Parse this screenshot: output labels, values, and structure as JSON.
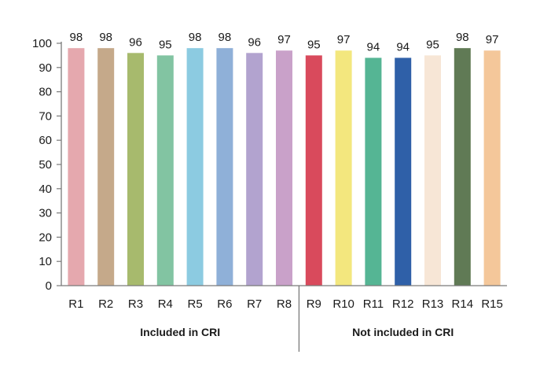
{
  "chart_data": {
    "type": "bar",
    "categories": [
      "R1",
      "R2",
      "R3",
      "R4",
      "R5",
      "R6",
      "R7",
      "R8",
      "R9",
      "R10",
      "R11",
      "R12",
      "R13",
      "R14",
      "R15"
    ],
    "values": [
      98,
      98,
      96,
      95,
      98,
      98,
      96,
      97,
      95,
      97,
      94,
      94,
      95,
      98,
      97
    ],
    "colors": [
      "#e5a8ae",
      "#c5a98a",
      "#a7ba6d",
      "#82c4a2",
      "#8ccbe1",
      "#8fb0d8",
      "#b2a3cf",
      "#c9a1c9",
      "#d94a5c",
      "#f3e77e",
      "#55b594",
      "#2f60a8",
      "#f7e6d6",
      "#607a55",
      "#f4c79a"
    ],
    "ylim": [
      0,
      100
    ],
    "yticks": [
      0,
      10,
      20,
      30,
      40,
      50,
      60,
      70,
      80,
      90,
      100
    ],
    "groups": [
      {
        "label": "Included in CRI",
        "from": 0,
        "to": 7
      },
      {
        "label": "Not included in CRI",
        "from": 8,
        "to": 14
      }
    ],
    "title": "",
    "xlabel": "",
    "ylabel": ""
  }
}
